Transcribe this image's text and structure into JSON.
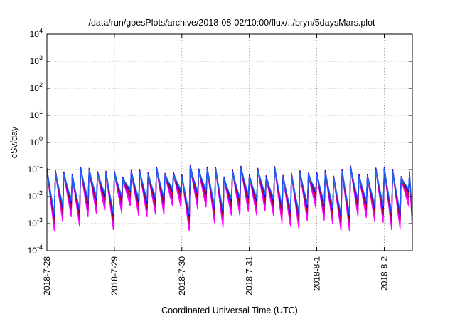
{
  "chart_data": {
    "type": "line",
    "title": "/data/run/goesPlots/archive/2018-08-02/10:00/flux/../bryn/5daysMars.plot",
    "xlabel": "Coordinated Universal Time (UTC)",
    "ylabel": "cSv/day",
    "x_axis": {
      "type": "date",
      "range": [
        "2018-07-28T00:00",
        "2018-08-02T10:00"
      ],
      "ticks": [
        "2018-7-28",
        "2018-7-29",
        "2018-7-30",
        "2018-7-31",
        "2018-8-1",
        "2018-8-2"
      ]
    },
    "y_axis": {
      "scale": "log",
      "range": [
        0.0001,
        10000
      ],
      "ticks": [
        {
          "base": "10",
          "exp": "-4"
        },
        {
          "base": "10",
          "exp": "-3"
        },
        {
          "base": "10",
          "exp": "-2"
        },
        {
          "base": "10",
          "exp": "-1"
        },
        {
          "base": "10",
          "exp": "0"
        },
        {
          "base": "10",
          "exp": "1"
        },
        {
          "base": "10",
          "exp": "2"
        },
        {
          "base": "10",
          "exp": "3"
        },
        {
          "base": "10",
          "exp": "4"
        }
      ]
    },
    "grid": true,
    "legend": "none",
    "pattern": {
      "cycle_hours": 3,
      "peak_range": [
        0.05,
        0.14
      ],
      "trough_range": [
        0.002,
        0.02
      ],
      "dips": [
        {
          "x": "2018-07-28T09:00",
          "min": 0.0035
        },
        {
          "x": "2018-07-30T17:00",
          "min": 0.004
        }
      ]
    },
    "series": [
      {
        "color": "#ff00ff",
        "peak_factor": 0.85,
        "trough_factor": 0.25
      },
      {
        "color": "#ff00ff",
        "peak_factor": 0.8,
        "trough_factor": 0.35
      },
      {
        "color": "#c000c0",
        "peak_factor": 0.8,
        "trough_factor": 0.45
      },
      {
        "color": "#800080",
        "peak_factor": 0.8,
        "trough_factor": 0.55
      },
      {
        "color": "#00a0a0",
        "peak_factor": 0.75,
        "trough_factor": 0.9
      },
      {
        "color": "#00b0b0",
        "peak_factor": 0.7,
        "trough_factor": 1.2
      },
      {
        "color": "#dd0000",
        "peak_factor": 1.05,
        "trough_factor": 0.6
      },
      {
        "color": "#0000ee",
        "peak_factor": 1.0,
        "trough_factor": 0.8
      },
      {
        "color": "#2060ff",
        "peak_factor": 0.92,
        "trough_factor": 1.0
      }
    ]
  }
}
